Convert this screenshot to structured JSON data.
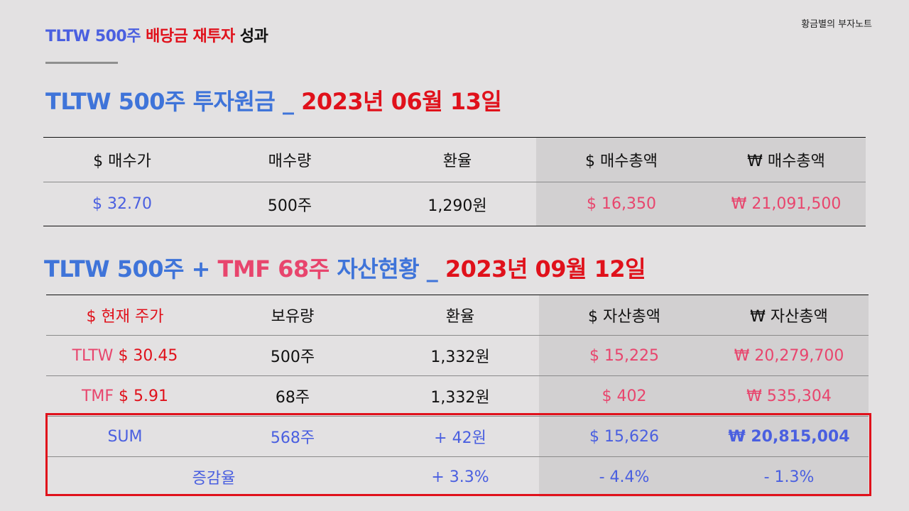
{
  "header": {
    "title_part1": "TLTW 500주 ",
    "title_part2": "배당금 재투자",
    "title_part3": " 성과",
    "brand": "황금별의 부자노트"
  },
  "section1": {
    "heading_part1": "TLTW 500주 투자원금 _ ",
    "heading_part2": "2023년 06월 13일",
    "columns": [
      "$ 매수가",
      "매수량",
      "환율",
      "$ 매수총액",
      "₩ 매수총액"
    ],
    "row": [
      "$ 32.70",
      "500주",
      "1,290원",
      "$ 16,350",
      "₩ 21,091,500"
    ]
  },
  "section2": {
    "heading_part1": "TLTW 500주 + ",
    "heading_part2": "TMF 68주",
    "heading_part3": " 자산현황 _ ",
    "heading_part4": "2023년 09월 12일",
    "columns": [
      "$ 현재 주가",
      "보유량",
      "환율",
      "$ 자산총액",
      "₩ 자산총액"
    ],
    "rows": [
      {
        "ticker": "TLTW ",
        "price": "$ 30.45",
        "qty": "500주",
        "fx": "1,332원",
        "usd": "$ 15,225",
        "krw": "₩ 20,279,700"
      },
      {
        "ticker": "TMF ",
        "price": "$ 5.91",
        "qty": "68주",
        "fx": "1,332원",
        "usd": "$ 402",
        "krw": "₩ 535,304"
      }
    ],
    "sum": {
      "label": "SUM",
      "qty": "568주",
      "fx": "+ 42원",
      "usd": "$ 15,626",
      "krw": "₩ 20,815,004"
    },
    "rate": {
      "label": "증감율",
      "qty": "",
      "fx": "+ 3.3%",
      "usd": "- 4.4%",
      "krw": "- 1.3%"
    }
  }
}
